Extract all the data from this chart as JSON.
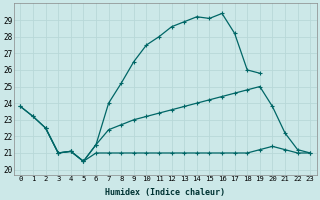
{
  "xlabel": "Humidex (Indice chaleur)",
  "bg_color": "#cce8e8",
  "line_color": "#006666",
  "grid_color": "#b0d0d0",
  "xlim": [
    -0.5,
    23.5
  ],
  "ylim": [
    19.7,
    30.0
  ],
  "yticks": [
    20,
    21,
    22,
    23,
    24,
    25,
    26,
    27,
    28,
    29
  ],
  "xticks": [
    0,
    1,
    2,
    3,
    4,
    5,
    6,
    7,
    8,
    9,
    10,
    11,
    12,
    13,
    14,
    15,
    16,
    17,
    18,
    19,
    20,
    21,
    22,
    23
  ],
  "line1_x": [
    0,
    1,
    2,
    3,
    4,
    5,
    6,
    7,
    8,
    9,
    10,
    11,
    12,
    13,
    14,
    15,
    16,
    17,
    18,
    19
  ],
  "line1_y": [
    23.8,
    23.2,
    22.5,
    21.0,
    21.1,
    20.5,
    21.5,
    24.0,
    25.2,
    26.5,
    27.5,
    28.0,
    28.6,
    28.9,
    29.2,
    29.1,
    29.4,
    28.2,
    26.0,
    25.8
  ],
  "line2_x": [
    0,
    1,
    2,
    3,
    4,
    5,
    6,
    7,
    8,
    9,
    10,
    11,
    12,
    13,
    14,
    15,
    16,
    17,
    18,
    19,
    20,
    21,
    22,
    23
  ],
  "line2_y": [
    23.8,
    23.2,
    22.5,
    21.0,
    21.1,
    20.5,
    21.5,
    22.4,
    22.7,
    23.0,
    23.2,
    23.4,
    23.6,
    23.8,
    24.0,
    24.2,
    24.4,
    24.6,
    24.8,
    25.0,
    23.8,
    22.2,
    21.2,
    21.0
  ],
  "line3_x": [
    2,
    3,
    4,
    5,
    6,
    7,
    8,
    9,
    10,
    11,
    12,
    13,
    14,
    15,
    16,
    17,
    18,
    19,
    20,
    21,
    22,
    23
  ],
  "line3_y": [
    22.5,
    21.0,
    21.1,
    20.5,
    21.0,
    21.0,
    21.0,
    21.0,
    21.0,
    21.0,
    21.0,
    21.0,
    21.0,
    21.0,
    21.0,
    21.0,
    21.0,
    21.2,
    21.4,
    21.2,
    21.0,
    21.0
  ]
}
